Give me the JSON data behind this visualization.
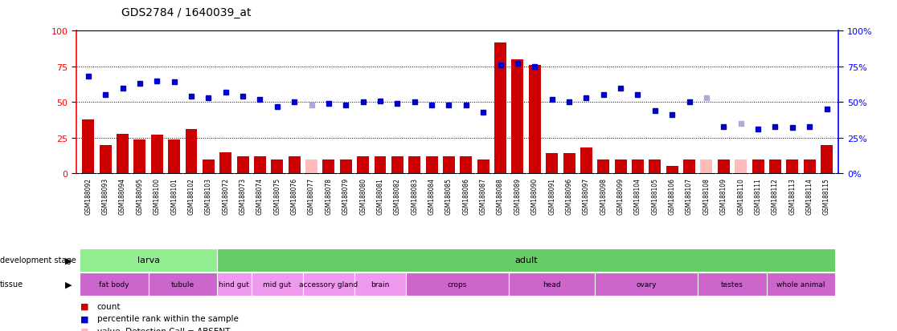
{
  "title": "GDS2784 / 1640039_at",
  "samples": [
    "GSM188092",
    "GSM188093",
    "GSM188094",
    "GSM188095",
    "GSM188100",
    "GSM188101",
    "GSM188102",
    "GSM188103",
    "GSM188072",
    "GSM188073",
    "GSM188074",
    "GSM188075",
    "GSM188076",
    "GSM188077",
    "GSM188078",
    "GSM188079",
    "GSM188080",
    "GSM188081",
    "GSM188082",
    "GSM188083",
    "GSM188084",
    "GSM188085",
    "GSM188086",
    "GSM188087",
    "GSM188088",
    "GSM188089",
    "GSM188090",
    "GSM188091",
    "GSM188096",
    "GSM188097",
    "GSM188098",
    "GSM188099",
    "GSM188104",
    "GSM188105",
    "GSM188106",
    "GSM188107",
    "GSM188108",
    "GSM188109",
    "GSM188110",
    "GSM188111",
    "GSM188112",
    "GSM188113",
    "GSM188114",
    "GSM188115"
  ],
  "bar_values": [
    38,
    20,
    28,
    24,
    27,
    24,
    31,
    10,
    15,
    12,
    12,
    10,
    12,
    10,
    10,
    10,
    12,
    12,
    12,
    12,
    12,
    12,
    12,
    10,
    92,
    80,
    76,
    14,
    14,
    18,
    10,
    10,
    10,
    10,
    5,
    10,
    10,
    10,
    10,
    10,
    10,
    10,
    10,
    20
  ],
  "bar_absent": [
    false,
    false,
    false,
    false,
    false,
    false,
    false,
    false,
    false,
    false,
    false,
    false,
    false,
    true,
    false,
    false,
    false,
    false,
    false,
    false,
    false,
    false,
    false,
    false,
    false,
    false,
    false,
    false,
    false,
    false,
    false,
    false,
    false,
    false,
    false,
    false,
    true,
    false,
    true,
    false,
    false,
    false,
    false,
    false
  ],
  "rank_values": [
    68,
    55,
    60,
    63,
    65,
    64,
    54,
    53,
    57,
    54,
    52,
    47,
    50,
    48,
    49,
    48,
    50,
    51,
    49,
    50,
    48,
    48,
    48,
    43,
    76,
    77,
    75,
    52,
    50,
    53,
    55,
    60,
    55,
    44,
    41,
    50,
    53,
    33,
    35,
    31,
    33,
    32,
    33,
    45
  ],
  "rank_absent": [
    false,
    false,
    false,
    false,
    false,
    false,
    false,
    false,
    false,
    false,
    false,
    false,
    false,
    true,
    false,
    false,
    false,
    false,
    false,
    false,
    false,
    false,
    false,
    false,
    false,
    false,
    false,
    false,
    false,
    false,
    false,
    false,
    false,
    false,
    false,
    false,
    true,
    false,
    true,
    false,
    false,
    false,
    false,
    false
  ],
  "dev_stages": [
    {
      "label": "larva",
      "start": 0,
      "end": 8,
      "color": "#90EE90"
    },
    {
      "label": "adult",
      "start": 8,
      "end": 44,
      "color": "#66CC66"
    }
  ],
  "tissues": [
    {
      "label": "fat body",
      "start": 0,
      "end": 4,
      "color": "#CC66CC"
    },
    {
      "label": "tubule",
      "start": 4,
      "end": 8,
      "color": "#CC66CC"
    },
    {
      "label": "hind gut",
      "start": 8,
      "end": 10,
      "color": "#EE99EE"
    },
    {
      "label": "mid gut",
      "start": 10,
      "end": 13,
      "color": "#EE99EE"
    },
    {
      "label": "accessory gland",
      "start": 13,
      "end": 16,
      "color": "#EE99EE"
    },
    {
      "label": "brain",
      "start": 16,
      "end": 19,
      "color": "#EE99EE"
    },
    {
      "label": "crops",
      "start": 19,
      "end": 25,
      "color": "#CC66CC"
    },
    {
      "label": "head",
      "start": 25,
      "end": 30,
      "color": "#CC66CC"
    },
    {
      "label": "ovary",
      "start": 30,
      "end": 36,
      "color": "#CC66CC"
    },
    {
      "label": "testes",
      "start": 36,
      "end": 40,
      "color": "#CC66CC"
    },
    {
      "label": "whole animal",
      "start": 40,
      "end": 44,
      "color": "#CC66CC"
    }
  ],
  "ylim": [
    0,
    100
  ],
  "bar_color": "#CC0000",
  "bar_absent_color": "#FFBBBB",
  "rank_color": "#0000CC",
  "rank_absent_color": "#AAAADD",
  "grid_lines": [
    25,
    50,
    75
  ],
  "xtick_bg": "#D0D0D0"
}
